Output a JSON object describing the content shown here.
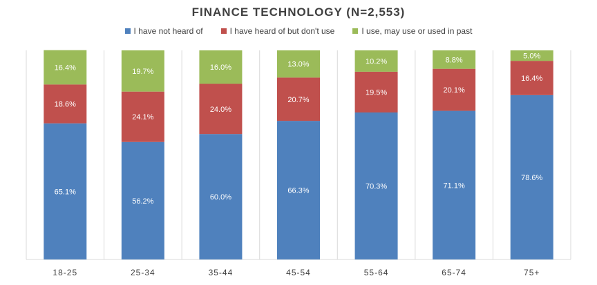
{
  "colors": {
    "not_heard": "#4f81bd",
    "heard_not_use": "#c0504d",
    "use": "#9bbb59",
    "label": "#ffffff",
    "axis_text": "#404040",
    "separator": "#d9d9d9"
  },
  "chart_data": {
    "type": "bar",
    "stacked": true,
    "title": "FINANCE TECHNOLOGY (N=2,553)",
    "xlabel": "",
    "ylabel": "",
    "ylim": [
      0,
      100
    ],
    "legend_position": "top",
    "categories": [
      "18-25",
      "25-34",
      "35-44",
      "45-54",
      "55-64",
      "65-74",
      "75+"
    ],
    "series": [
      {
        "name": "I have not heard of",
        "color_key": "not_heard",
        "values": [
          65.1,
          56.2,
          60.0,
          66.3,
          70.3,
          71.1,
          78.6
        ],
        "labels": [
          "65.1%",
          "56.2%",
          "60.0%",
          "66.3%",
          "70.3%",
          "71.1%",
          "78.6%"
        ]
      },
      {
        "name": "I have heard of but don't use",
        "color_key": "heard_not_use",
        "values": [
          18.6,
          24.1,
          24.0,
          20.7,
          19.5,
          20.1,
          16.4
        ],
        "labels": [
          "18.6%",
          "24.1%",
          "24.0%",
          "20.7%",
          "19.5%",
          "20.1%",
          "16.4%"
        ]
      },
      {
        "name": "I use, may use or used in past",
        "color_key": "use",
        "values": [
          16.4,
          19.7,
          16.0,
          13.0,
          10.2,
          8.8,
          5.0
        ],
        "labels": [
          "16.4%",
          "19.7%",
          "16.0%",
          "13.0%",
          "10.2%",
          "8.8%",
          "5.0%"
        ]
      }
    ]
  }
}
